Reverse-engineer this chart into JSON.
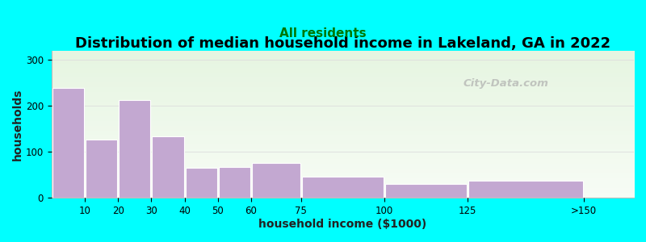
{
  "title": "Distribution of median household income in Lakeland, GA in 2022",
  "subtitle": "All residents",
  "xlabel": "household income ($1000)",
  "ylabel": "households",
  "background_color": "#00FFFF",
  "bar_color": "#C3A8D1",
  "bar_edge_color": "#ffffff",
  "categories": [
    "10",
    "20",
    "30",
    "40",
    "50",
    "60",
    "75",
    "100",
    "125",
    ">150"
  ],
  "bar_lefts": [
    0,
    10,
    20,
    30,
    40,
    50,
    60,
    75,
    100,
    125
  ],
  "bar_widths": [
    10,
    10,
    10,
    10,
    10,
    10,
    15,
    25,
    25,
    35
  ],
  "values": [
    240,
    128,
    213,
    135,
    65,
    67,
    77,
    46,
    30,
    38
  ],
  "ylim": [
    0,
    320
  ],
  "yticks": [
    0,
    100,
    200,
    300
  ],
  "xtick_positions": [
    10,
    20,
    30,
    40,
    50,
    60,
    75,
    100,
    125,
    160
  ],
  "xtick_labels": [
    "10",
    "20",
    "30",
    "40",
    "50",
    "60",
    "75",
    "100",
    "125",
    ">150"
  ],
  "xlim": [
    0,
    175
  ],
  "watermark": "City-Data.com",
  "title_fontsize": 13,
  "subtitle_fontsize": 11,
  "axis_label_fontsize": 10,
  "subtitle_color": "#007700"
}
